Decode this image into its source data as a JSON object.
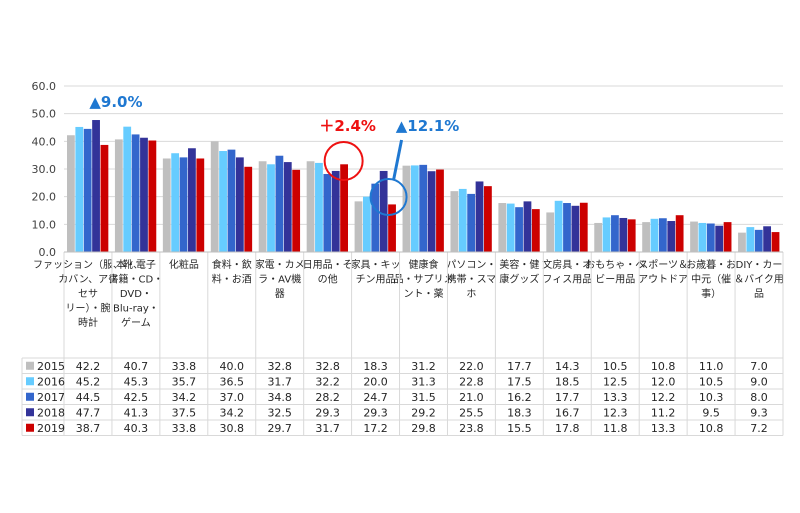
{
  "chart_data": {
    "type": "bar",
    "title": "",
    "xlabel": "",
    "ylabel": "",
    "ylim": [
      0,
      60
    ],
    "yticks": [
      "0.0",
      "10.0",
      "20.0",
      "30.0",
      "40.0",
      "50.0",
      "60.0"
    ],
    "grid": true,
    "legend": "table-left",
    "categories": [
      [
        "ファッション（服、靴、",
        "カバン、アク",
        "セサ",
        "リー）・腕",
        "時計"
      ],
      [
        "本・電子",
        "書籍・CD・",
        "DVD・",
        "Blu-ray・",
        "ゲーム"
      ],
      [
        "化粧品"
      ],
      [
        "食料・飲",
        "料・お酒"
      ],
      [
        "家電・カメ",
        "ラ・AV機",
        "器"
      ],
      [
        "日用品・そ",
        "の他"
      ],
      [
        "家具・キッ",
        "チン用品"
      ],
      [
        "健康食",
        "品・サプリメ",
        "ント・薬"
      ],
      [
        "パソコン・",
        "携帯・スマ",
        "ホ"
      ],
      [
        "美容・健",
        "康グッズ"
      ],
      [
        "文房具・オ",
        "フィス用品"
      ],
      [
        "おもちゃ・ベ",
        "ビー用品"
      ],
      [
        "スポーツ＆",
        "アウトドア"
      ],
      [
        "お歳暮・お",
        "中元（催",
        "事）"
      ],
      [
        "DIY・カー",
        "＆バイク用",
        "品"
      ]
    ],
    "series": [
      {
        "name": "2015",
        "color": "#BFBFBF",
        "values": [
          42.2,
          40.7,
          33.8,
          40.0,
          32.8,
          32.8,
          18.3,
          31.2,
          22.0,
          17.7,
          14.3,
          10.5,
          10.8,
          11.0,
          7.0
        ]
      },
      {
        "name": "2016",
        "color": "#66CCFF",
        "values": [
          45.2,
          45.3,
          35.7,
          36.5,
          31.7,
          32.2,
          20.0,
          31.3,
          22.8,
          17.5,
          18.5,
          12.5,
          12.0,
          10.5,
          9.0
        ]
      },
      {
        "name": "2017",
        "color": "#3366CC",
        "values": [
          44.5,
          42.5,
          34.2,
          37.0,
          34.8,
          28.2,
          24.7,
          31.5,
          21.0,
          16.2,
          17.7,
          13.3,
          12.2,
          10.3,
          8.0
        ]
      },
      {
        "name": "2018",
        "color": "#333399",
        "values": [
          47.7,
          41.3,
          37.5,
          34.2,
          32.5,
          29.3,
          29.3,
          29.2,
          25.5,
          18.3,
          16.7,
          12.3,
          11.2,
          9.5,
          9.3
        ]
      },
      {
        "name": "2019",
        "color": "#CC0000",
        "values": [
          38.7,
          40.3,
          33.8,
          30.8,
          29.7,
          31.7,
          17.2,
          29.8,
          23.8,
          15.5,
          17.8,
          11.8,
          13.3,
          10.8,
          7.2
        ]
      }
    ],
    "value_labels": [
      [
        "42.2",
        "40.7",
        "33.8",
        "40.0",
        "32.8",
        "32.8",
        "18.3",
        "31.2",
        "22.0",
        "17.7",
        "14.3",
        "10.5",
        "10.8",
        "11.0",
        "7.0"
      ],
      [
        "45.2",
        "45.3",
        "35.7",
        "36.5",
        "31.7",
        "32.2",
        "20.0",
        "31.3",
        "22.8",
        "17.5",
        "18.5",
        "12.5",
        "12.0",
        "10.5",
        "9.0"
      ],
      [
        "44.5",
        "42.5",
        "34.2",
        "37.0",
        "34.8",
        "28.2",
        "24.7",
        "31.5",
        "21.0",
        "16.2",
        "17.7",
        "13.3",
        "12.2",
        "10.3",
        "8.0"
      ],
      [
        "47.7",
        "41.3",
        "37.5",
        "34.2",
        "32.5",
        "29.3",
        "29.3",
        "29.2",
        "25.5",
        "18.3",
        "16.7",
        "12.3",
        "11.2",
        "9.5",
        "9.3"
      ],
      [
        "38.7",
        "40.3",
        "33.8",
        "30.8",
        "29.7",
        "31.7",
        "17.2",
        "29.8",
        "23.8",
        "15.5",
        "17.8",
        "11.8",
        "13.3",
        "10.8",
        "7.2"
      ]
    ],
    "annotations": [
      {
        "text": "▲9.0%",
        "color": "#1F78D1",
        "category_index": 0
      },
      {
        "text": "＋2.4%",
        "color": "#EE1111",
        "category_index": 5
      },
      {
        "text": "▲12.1%",
        "color": "#1F78D1",
        "category_index": 6
      }
    ]
  }
}
